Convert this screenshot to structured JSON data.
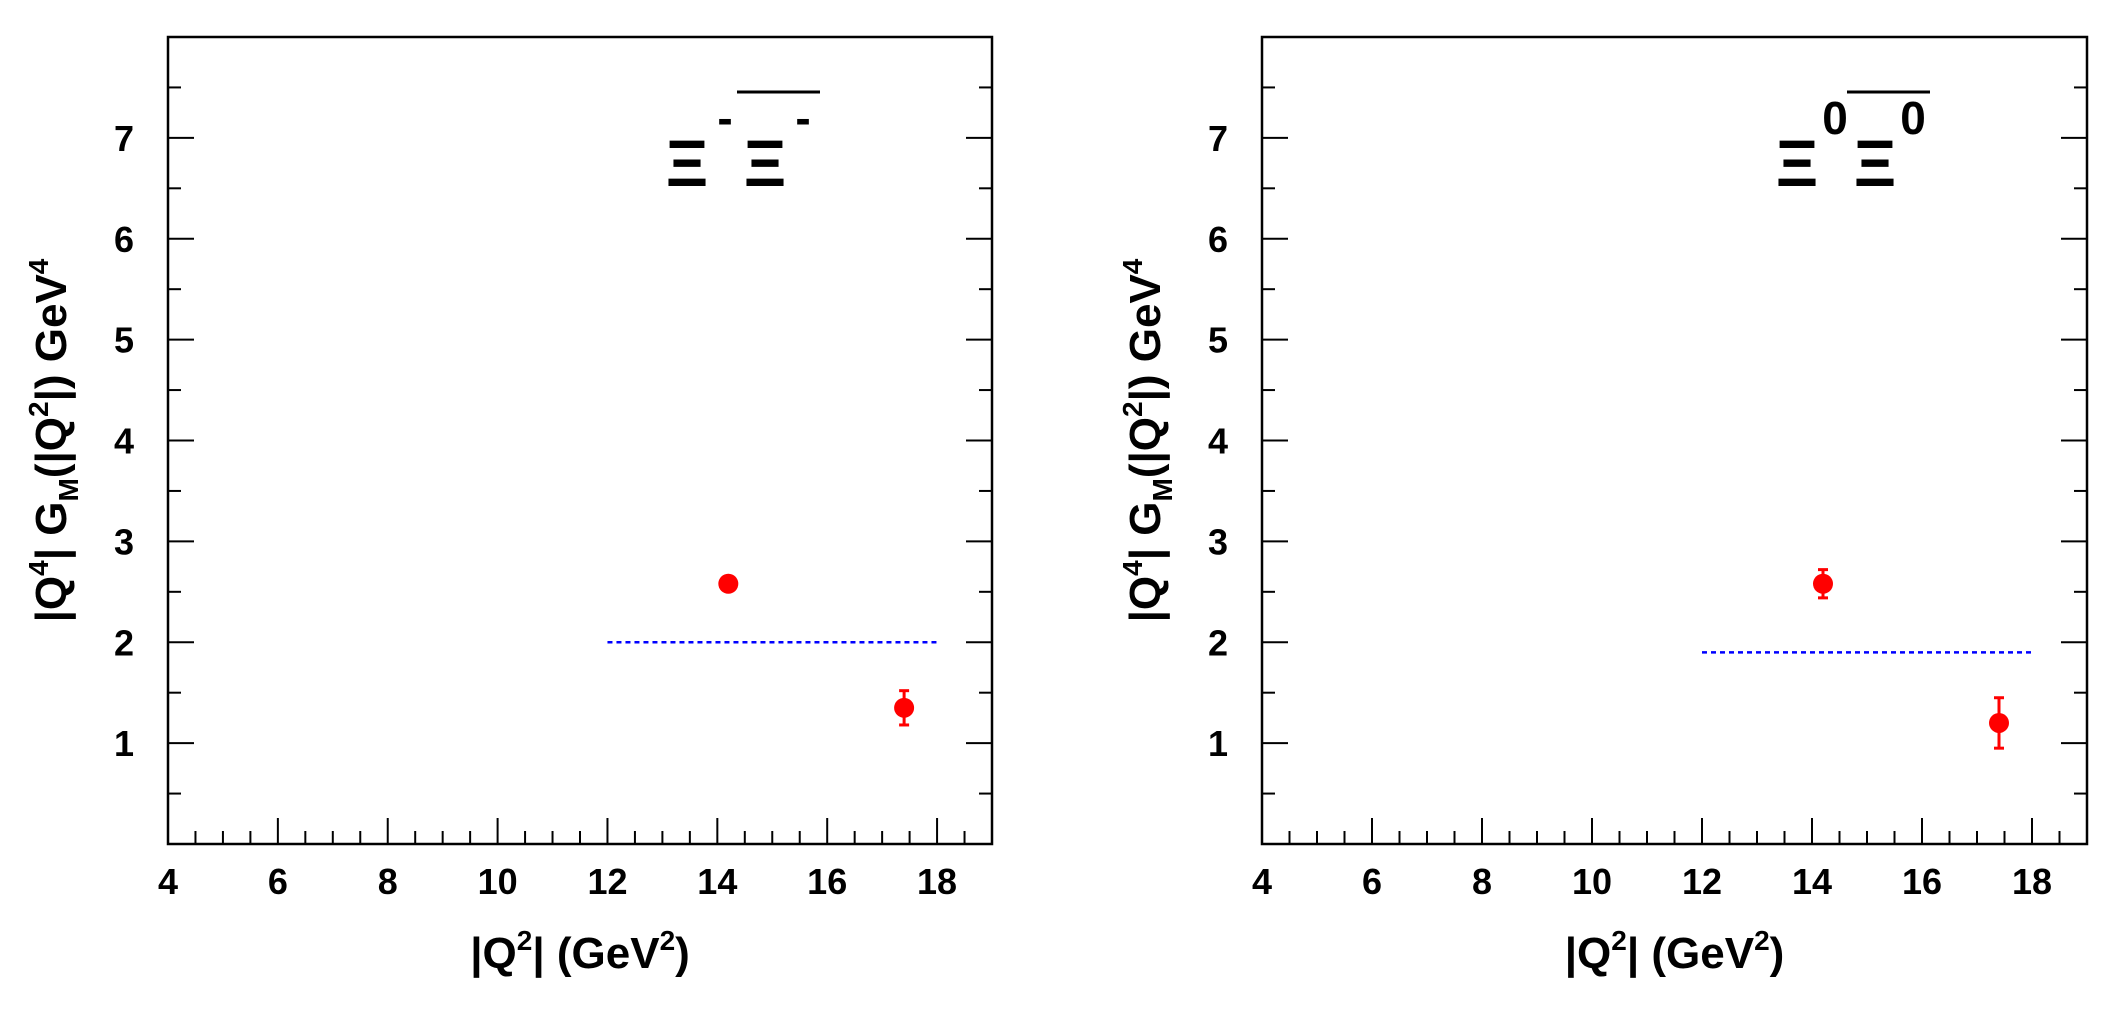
{
  "chart_data": [
    {
      "type": "scatter",
      "title": "",
      "particle_symbol": "Ξ",
      "particle_superscript": "-",
      "antiparticle_symbol": "Ξ",
      "antiparticle_superscript": "-",
      "xlabel": {
        "pre": "|Q",
        "sup": "2",
        "post": "| (GeV",
        "sup2": "2",
        "end": ")"
      },
      "ylabel": {
        "a": "|Q",
        "a_sup": "4",
        "b": "| G",
        "b_sub": "M",
        "c": "(|Q",
        "c_sup": "2",
        "d": "|) GeV",
        "d_sup": "4"
      },
      "xlim": [
        4,
        19
      ],
      "ylim": [
        0,
        8
      ],
      "xticks": [
        "4",
        "6",
        "8",
        "10",
        "12",
        "14",
        "16",
        "18"
      ],
      "yticks": [
        "1",
        "2",
        "3",
        "4",
        "5",
        "6",
        "7"
      ],
      "points": [
        {
          "x": 14.2,
          "y": 2.58,
          "yerr": 0.05
        },
        {
          "x": 17.4,
          "y": 1.35,
          "yerr": 0.17
        }
      ],
      "reference_line": {
        "x": [
          12,
          18
        ],
        "y": 2.0,
        "color": "#0000ff",
        "style": "dashed"
      },
      "marker_color": "#ff0000"
    },
    {
      "type": "scatter",
      "title": "",
      "particle_symbol": "Ξ",
      "particle_superscript": "0",
      "antiparticle_symbol": "Ξ",
      "antiparticle_superscript": "0",
      "xlabel": {
        "pre": "|Q",
        "sup": "2",
        "post": "| (GeV",
        "sup2": "2",
        "end": ")"
      },
      "ylabel": {
        "a": "|Q",
        "a_sup": "4",
        "b": "| G",
        "b_sub": "M",
        "c": "(|Q",
        "c_sup": "2",
        "d": "|) GeV",
        "d_sup": "4"
      },
      "xlim": [
        4,
        19
      ],
      "ylim": [
        0,
        8
      ],
      "xticks": [
        "4",
        "6",
        "8",
        "10",
        "12",
        "14",
        "16",
        "18"
      ],
      "yticks": [
        "1",
        "2",
        "3",
        "4",
        "5",
        "6",
        "7"
      ],
      "points": [
        {
          "x": 14.2,
          "y": 2.58,
          "yerr": 0.14
        },
        {
          "x": 17.4,
          "y": 1.2,
          "yerr": 0.25
        }
      ],
      "reference_line": {
        "x": [
          12,
          18
        ],
        "y": 1.9,
        "color": "#0000ff",
        "style": "dashed"
      },
      "marker_color": "#ff0000"
    }
  ]
}
